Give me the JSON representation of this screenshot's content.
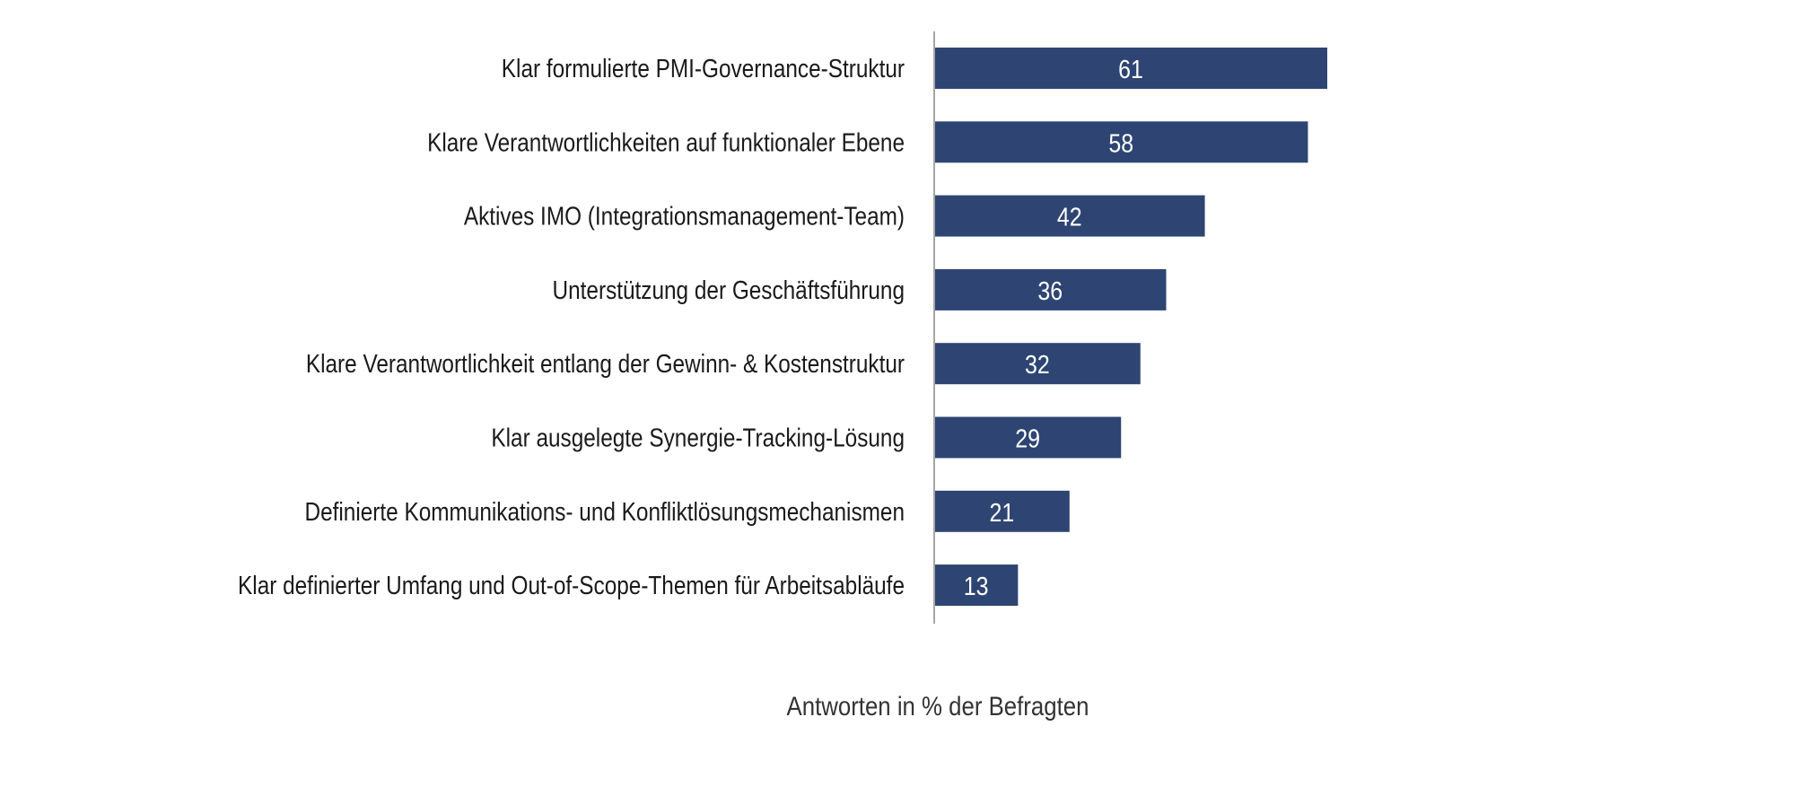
{
  "chart_data": {
    "type": "bar",
    "orientation": "horizontal",
    "title": "",
    "xlabel": "Antworten in % der Befragten",
    "ylabel": "",
    "categories": [
      "Klar formulierte PMI-Governance-Struktur",
      "Klare Verantwortlichkeiten auf funktionaler Ebene",
      "Aktives IMO (Integrationsmanagement-Team)",
      "Unterstützung der Geschäftsführung",
      "Klare Verantwortlichkeit entlang der Gewinn- & Kostenstruktur",
      "Klar ausgelegte Synergie-Tracking-Lösung",
      "Definierte Kommunikations- und Konfliktlösungsmechanismen",
      "Klar definierter Umfang und Out-of-Scope-Themen für Arbeitsabläufe"
    ],
    "values": [
      61,
      58,
      42,
      36,
      32,
      29,
      21,
      13
    ],
    "value_labels": [
      "61",
      "58",
      "42",
      "36",
      "32",
      "29",
      "21",
      "13"
    ],
    "xlim": [
      0,
      100
    ],
    "grid": false,
    "legend": "none",
    "colors": {
      "bar": "#2e4573",
      "value_text": "#ffffff",
      "axis_line": "#a6a6a6"
    }
  }
}
